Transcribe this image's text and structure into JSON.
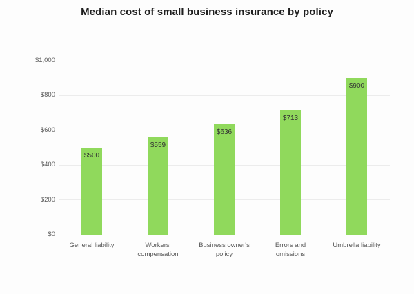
{
  "title": "Median cost of small business insurance by policy",
  "colors": {
    "background": "#fdfdfd",
    "bar": "#90d95c",
    "grid": "#ececec",
    "axis_line": "#d8d8d8",
    "title_text": "#1f1f1f",
    "tick_text": "#5a5a5a",
    "value_text": "#333333"
  },
  "chart_data": {
    "type": "bar",
    "title": "Median cost of small business insurance by policy",
    "xlabel": "",
    "ylabel": "",
    "categories": [
      "General liability",
      "Workers' compensation",
      "Business owner's policy",
      "Errors and omissions",
      "Umbrella liability"
    ],
    "category_lines": [
      [
        "General liability"
      ],
      [
        "Workers'",
        "compensation"
      ],
      [
        "Business owner's",
        "policy"
      ],
      [
        "Errors and",
        "omissions"
      ],
      [
        "Umbrella liability"
      ]
    ],
    "values": [
      500,
      559,
      636,
      713,
      900
    ],
    "value_labels": [
      "$500",
      "$559",
      "$636",
      "$713",
      "$900"
    ],
    "ylim": [
      0,
      1000
    ],
    "yticks": [
      0,
      200,
      400,
      600,
      800,
      1000
    ],
    "ytick_labels": [
      "$0",
      "$200",
      "$400",
      "$600",
      "$800",
      "$1,000"
    ],
    "grid": "horizontal",
    "legend": "none",
    "bar_label_position": "inside-top"
  }
}
